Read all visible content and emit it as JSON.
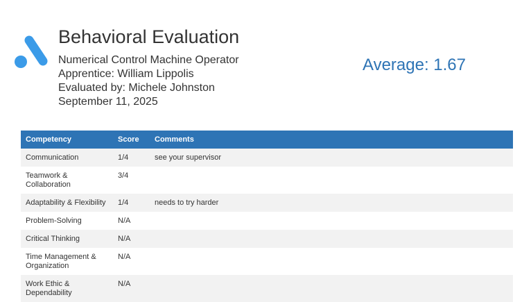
{
  "header": {
    "title": "Behavioral Evaluation",
    "occupation": "Numerical Control Machine Operator",
    "apprentice": "Apprentice: William Lippolis",
    "evaluator": "Evaluated by: Michele Johnston",
    "date": "September 11, 2025",
    "average": "Average: 1.67"
  },
  "logo": {
    "icon": "brand-logo-icon",
    "color": "#3b9be8"
  },
  "colors": {
    "accent": "#2e74b5",
    "row_alt": "#f2f2f2"
  },
  "table": {
    "headers": [
      "Competency",
      "Score",
      "Comments"
    ],
    "rows": [
      {
        "competency": "Communication",
        "score": "1/4",
        "comments": "see your supervisor"
      },
      {
        "competency": "Teamwork & Collaboration",
        "score": "3/4",
        "comments": ""
      },
      {
        "competency": "Adaptability & Flexibility",
        "score": "1/4",
        "comments": "needs to try harder"
      },
      {
        "competency": "Problem-Solving",
        "score": "N/A",
        "comments": ""
      },
      {
        "competency": "Critical Thinking",
        "score": "N/A",
        "comments": ""
      },
      {
        "competency": "Time Management & Organization",
        "score": "N/A",
        "comments": ""
      },
      {
        "competency": "Work Ethic & Dependability",
        "score": "N/A",
        "comments": ""
      }
    ]
  }
}
